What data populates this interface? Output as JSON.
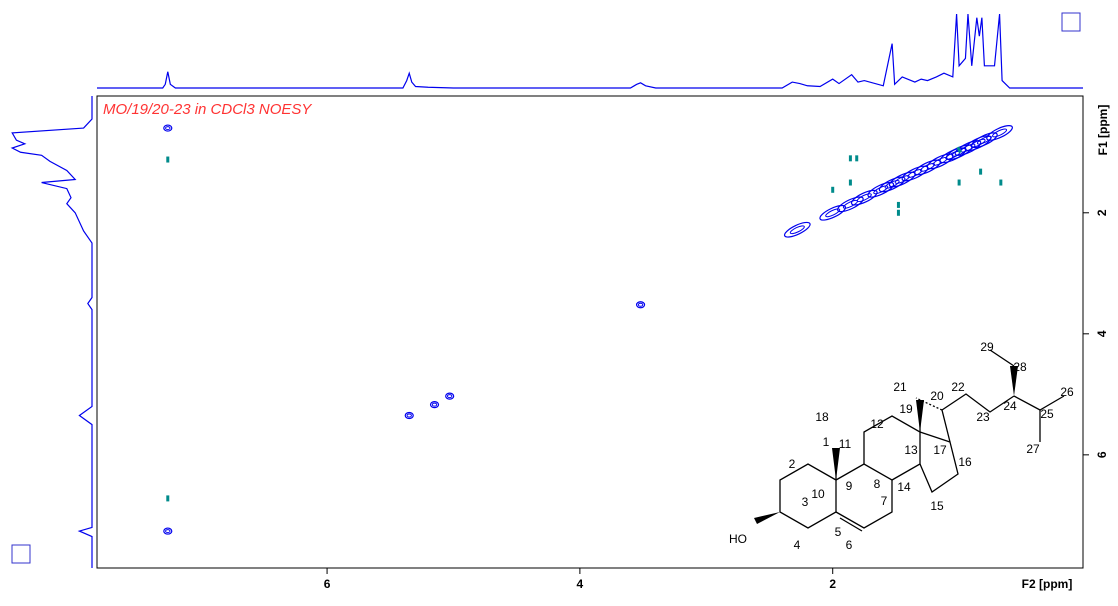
{
  "chart_data": {
    "type": "contour",
    "title": "MO/19/20-23 in CDCl3 NOESY",
    "x_label": "F2 [ppm]",
    "y_label": "F1 [ppm]",
    "xlim": [
      7.82,
      0.02
    ],
    "ylim": [
      0.07,
      7.87
    ],
    "xticks": [
      6,
      4,
      2
    ],
    "yticks": [
      2,
      4,
      6
    ],
    "series": [
      {
        "color": "#0000ee",
        "x": [
          7.26,
          5.35,
          3.52,
          5.15,
          5.03,
          7.26,
          2.28,
          2.0,
          1.86,
          1.75,
          1.62,
          1.53,
          1.45,
          1.35,
          1.25,
          1.15,
          1.05,
          1.0,
          0.93,
          0.85,
          0.8,
          0.68
        ],
        "values": [
          7.26,
          5.35,
          3.52,
          5.17,
          5.03,
          0.6,
          2.28,
          2.0,
          1.86,
          1.75,
          1.62,
          1.53,
          1.45,
          1.35,
          1.25,
          1.15,
          1.05,
          1.0,
          0.93,
          0.85,
          0.8,
          0.68
        ]
      },
      {
        "color": "#008b8b",
        "x": [
          7.26,
          7.26,
          2.0,
          1.86,
          1.81,
          1.86,
          1.48,
          1.48,
          1.0,
          0.83,
          0.67,
          1.0
        ],
        "values": [
          1.12,
          6.72,
          1.62,
          1.1,
          1.1,
          1.5,
          1.87,
          2.0,
          1.5,
          1.32,
          1.5,
          0.96
        ]
      }
    ],
    "projection_f2": {
      "color": "#0000ee",
      "x": [
        7.82,
        7.3,
        7.28,
        7.26,
        7.24,
        7.2,
        5.4,
        5.37,
        5.35,
        5.33,
        5.3,
        5.2,
        5.0,
        3.6,
        3.55,
        3.52,
        3.48,
        3.4,
        2.4,
        2.32,
        2.26,
        2.2,
        2.1,
        2.0,
        1.95,
        1.85,
        1.8,
        1.75,
        1.6,
        1.53,
        1.51,
        1.45,
        1.35,
        1.3,
        1.25,
        1.18,
        1.12,
        1.05,
        1.02,
        1.0,
        0.95,
        0.93,
        0.9,
        0.86,
        0.84,
        0.82,
        0.8,
        0.72,
        0.68,
        0.66,
        0.6,
        0.02
      ],
      "values": [
        0,
        0,
        0.05,
        0.22,
        0.05,
        0,
        0,
        0.1,
        0.2,
        0.08,
        0.02,
        0.01,
        0,
        0,
        0.05,
        0.07,
        0.03,
        0,
        0,
        0.08,
        0.06,
        0.03,
        0.02,
        0.12,
        0.06,
        0.18,
        0.08,
        0.1,
        0.03,
        0.6,
        0.05,
        0.15,
        0.08,
        0.12,
        0.1,
        0.15,
        0.2,
        0.15,
        1.0,
        0.3,
        0.4,
        1.0,
        0.3,
        0.95,
        0.7,
        0.95,
        0.3,
        0.3,
        1.0,
        0.1,
        0,
        0
      ]
    },
    "projection_f1": {
      "color": "#0000ee",
      "y": [
        0.07,
        0.45,
        0.6,
        0.68,
        0.8,
        0.86,
        0.93,
        1.0,
        1.05,
        1.15,
        1.3,
        1.45,
        1.5,
        1.6,
        1.75,
        1.85,
        2.0,
        2.3,
        2.5,
        3.4,
        3.5,
        3.6,
        5.2,
        5.35,
        5.5,
        7.2,
        7.26,
        7.35,
        7.87
      ],
      "values": [
        0,
        0,
        0.1,
        0.95,
        0.9,
        0.8,
        0.95,
        0.85,
        0.6,
        0.5,
        0.3,
        0.2,
        0.6,
        0.3,
        0.25,
        0.3,
        0.2,
        0.1,
        0,
        0,
        0.05,
        0,
        0,
        0.15,
        0,
        0,
        0.15,
        0,
        0
      ]
    }
  },
  "structure": {
    "labels": [
      "1",
      "2",
      "3",
      "4",
      "5",
      "6",
      "7",
      "8",
      "9",
      "10",
      "11",
      "12",
      "13",
      "14",
      "15",
      "16",
      "17",
      "18",
      "19",
      "20",
      "21",
      "22",
      "23",
      "24",
      "25",
      "26",
      "27",
      "28",
      "29"
    ],
    "hydroxyl": "HO"
  }
}
